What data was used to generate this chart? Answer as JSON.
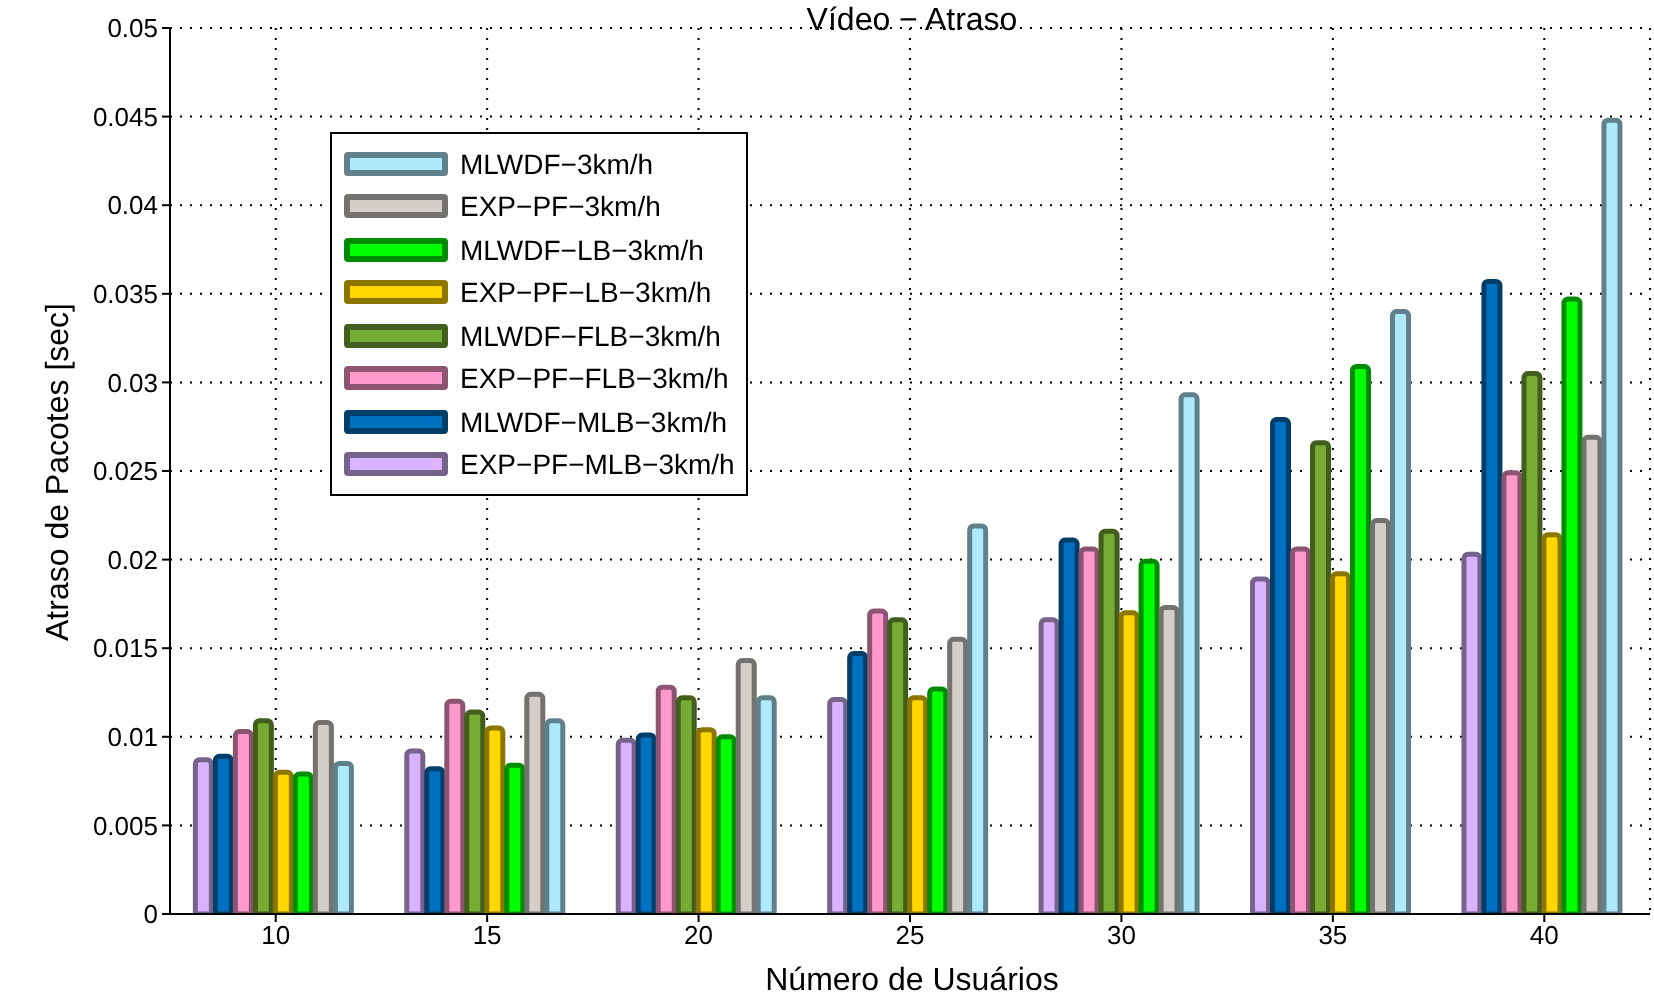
{
  "chart_data": {
    "type": "bar",
    "title": "Vídeo − Atraso",
    "xlabel": "Número de Usuários",
    "ylabel": "Atraso de Pacotes [sec]",
    "categories": [
      "10",
      "15",
      "20",
      "25",
      "30",
      "35",
      "40"
    ],
    "series": [
      {
        "name": "MLWDF−3km/h",
        "color": "#aeeafc",
        "values": [
          0.0085,
          0.0109,
          0.0122,
          0.0219,
          0.0293,
          0.034,
          0.0448
        ]
      },
      {
        "name": "EXP−PF−3km/h",
        "color": "#d3cfc8",
        "values": [
          0.0108,
          0.0124,
          0.0143,
          0.0155,
          0.0173,
          0.0222,
          0.0269
        ]
      },
      {
        "name": "MLWDF−LB−3km/h",
        "color": "#00ff00",
        "values": [
          0.0079,
          0.0084,
          0.01,
          0.0127,
          0.0199,
          0.0309,
          0.0347
        ]
      },
      {
        "name": "EXP−PF−LB−3km/h",
        "color": "#ffd700",
        "values": [
          0.008,
          0.0105,
          0.0104,
          0.0122,
          0.017,
          0.0192,
          0.0214
        ]
      },
      {
        "name": "MLWDF−FLB−3km/h",
        "color": "#77ab33",
        "values": [
          0.0109,
          0.0114,
          0.0122,
          0.0166,
          0.0216,
          0.0266,
          0.0305
        ]
      },
      {
        "name": "EXP−PF−FLB−3km/h",
        "color": "#ff99cc",
        "values": [
          0.0103,
          0.012,
          0.0128,
          0.0171,
          0.0206,
          0.0206,
          0.0249
        ]
      },
      {
        "name": "MLWDF−MLB−3km/h",
        "color": "#0070c0",
        "values": [
          0.0089,
          0.0082,
          0.0101,
          0.0147,
          0.0211,
          0.0279,
          0.0357
        ]
      },
      {
        "name": "EXP−PF−MLB−3km/h",
        "color": "#d9b3ff",
        "values": [
          0.0087,
          0.0092,
          0.0098,
          0.0121,
          0.0166,
          0.0189,
          0.0203
        ]
      }
    ],
    "ylim": [
      0,
      0.05
    ],
    "yticks": [
      0,
      0.005,
      0.01,
      0.015,
      0.02,
      0.025,
      0.03,
      0.035,
      0.04,
      0.045,
      0.05
    ],
    "grid": true,
    "legend": "top left"
  }
}
